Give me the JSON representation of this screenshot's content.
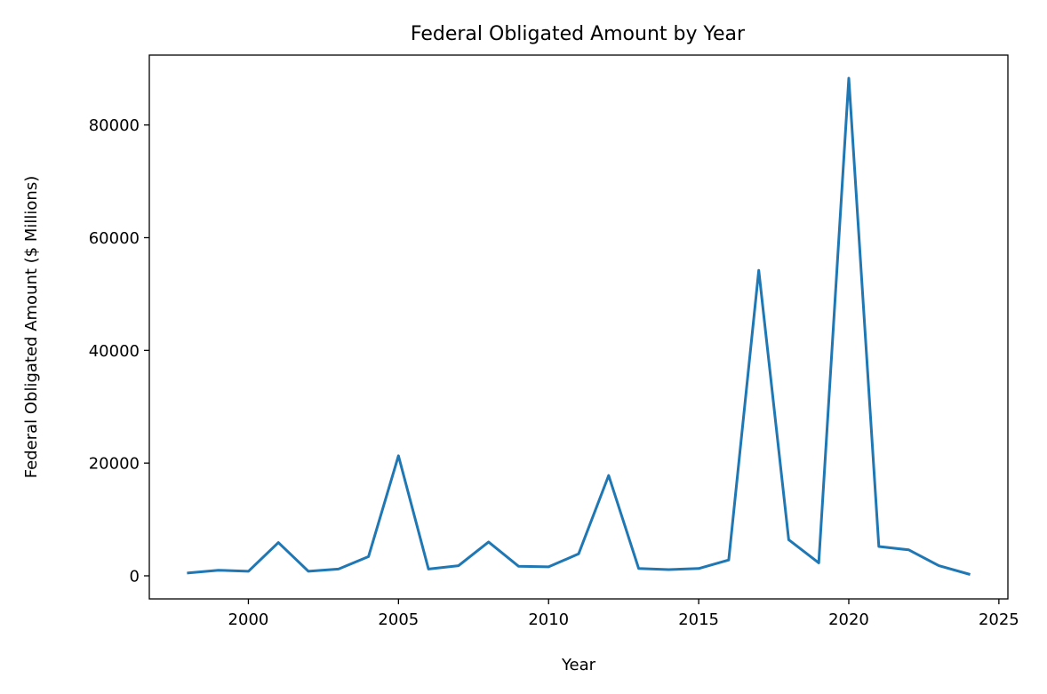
{
  "chart_data": {
    "type": "line",
    "title": "Federal Obligated Amount by Year",
    "xlabel": "Year",
    "ylabel": "Federal Obligated Amount ($ Millions)",
    "xlim": [
      1996.7,
      2025.3
    ],
    "ylim": [
      -4100,
      92400
    ],
    "xticks": [
      2000,
      2005,
      2010,
      2015,
      2020,
      2025
    ],
    "yticks": [
      0,
      20000,
      40000,
      60000,
      80000
    ],
    "grid": false,
    "legend": "none",
    "series": [
      {
        "color": "#1f77b4",
        "x": [
          1998,
          1999,
          2000,
          2001,
          2002,
          2003,
          2004,
          2005,
          2006,
          2007,
          2008,
          2009,
          2010,
          2011,
          2012,
          2013,
          2014,
          2015,
          2016,
          2017,
          2018,
          2019,
          2020,
          2021,
          2022,
          2023,
          2024
        ],
        "y": [
          500,
          1000,
          800,
          5900,
          800,
          1200,
          3400,
          21300,
          1200,
          1800,
          6000,
          1700,
          1600,
          3900,
          17800,
          1300,
          1100,
          1300,
          2800,
          54200,
          6400,
          2300,
          88300,
          5200,
          4600,
          1800,
          300
        ]
      }
    ]
  }
}
